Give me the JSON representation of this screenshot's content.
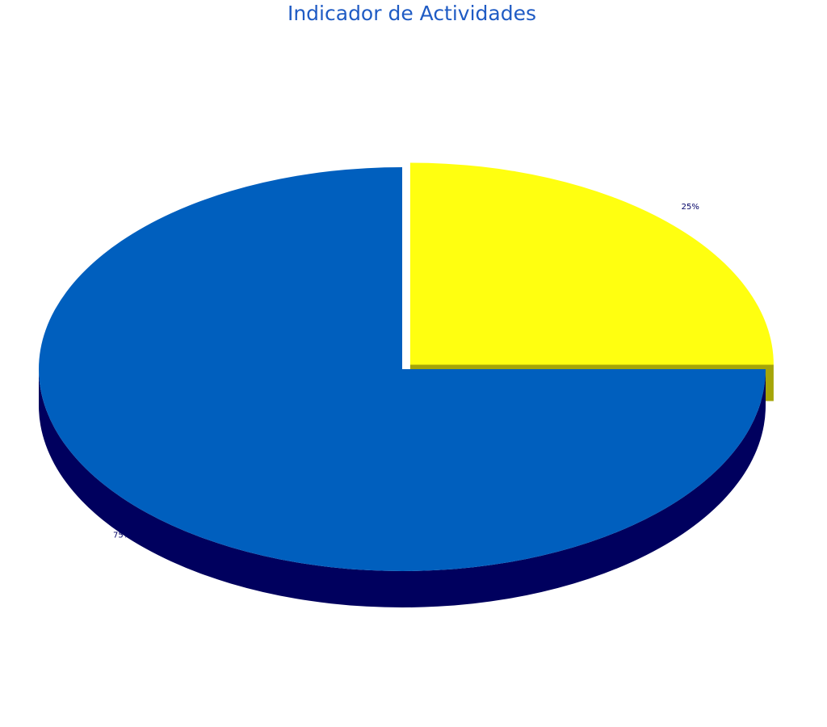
{
  "chart_data": {
    "type": "pie",
    "title": "Indicador de Actividades",
    "slices": [
      {
        "value": 25,
        "label": "25%",
        "color": "#ffff10",
        "side_color": "#a5a508"
      },
      {
        "value": 75,
        "label": "75%",
        "color": "#005fbe",
        "side_color": "#00005e"
      }
    ],
    "three_d": true,
    "exploded": true,
    "legend": "none",
    "title_color": "#1f5bc4"
  }
}
